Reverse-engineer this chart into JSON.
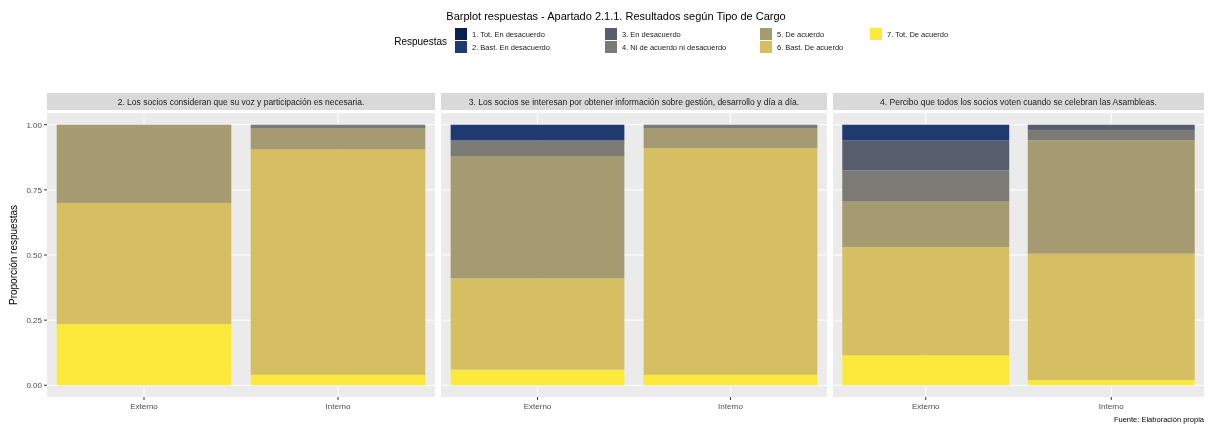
{
  "chart_data": [
    {
      "type": "bar",
      "stacked": true,
      "title": "2. Los socios consideran que su voz y participación es necesaria.",
      "ylabel": "Proporción respuestas",
      "legend_title": "Respuestas",
      "legend": "top",
      "grid": true,
      "categories": [
        "Externo",
        "Interno"
      ],
      "ylim": [
        -0.045,
        1.045
      ],
      "yticks": [
        {
          "value": 0,
          "label": "0.00"
        },
        {
          "value": 0.25,
          "label": "0.25"
        },
        {
          "value": 0.5,
          "label": "0.50"
        },
        {
          "value": 0.75,
          "label": "0.75"
        },
        {
          "value": 1,
          "label": "1.00"
        }
      ],
      "annotations": [
        "Barplot respuestas - Apartado 2.1.1. Resultados según Tipo de Cargo"
      ],
      "series": [
        {
          "name": "7. Tot. De acuerdo",
          "color": "#fde83c",
          "values": [
            0.235,
            0.04
          ]
        },
        {
          "name": "6. Bast. De acuerdo",
          "color": "#d5bf62",
          "values": [
            0.465,
            0.865
          ]
        },
        {
          "name": "5. De acuerdo",
          "color": "#a69b70",
          "values": [
            0.3,
            0.08
          ]
        },
        {
          "name": "4. Ni de acuerdo ni desacuerdo",
          "color": "#7b7a75",
          "values": [
            0,
            0.015
          ]
        },
        {
          "name": "3. En desacuerdo",
          "color": "#575d6d",
          "values": [
            0,
            0
          ]
        },
        {
          "name": "2. Bast. En desacuerdo",
          "color": "#1f3a6e",
          "values": [
            0,
            0
          ]
        },
        {
          "name": "1. Tot. En desacuerdo",
          "color": "#0d1f4f",
          "values": [
            0,
            0
          ]
        }
      ]
    },
    {
      "type": "bar",
      "stacked": true,
      "title": "3. Los socios se interesan por obtener información sobre gestión, desarrollo y día a día.",
      "grid": true,
      "tick_labels": "x",
      "categories": [
        "Externo",
        "Interno"
      ],
      "ylim": [
        -0.045,
        1.045
      ],
      "yticks": [
        {
          "value": 0,
          "label": null
        },
        {
          "value": 0.25,
          "label": null
        },
        {
          "value": 0.5,
          "label": null
        },
        {
          "value": 0.75,
          "label": null
        },
        {
          "value": 1,
          "label": null
        }
      ],
      "series": [
        {
          "color": "#fde83c",
          "values": [
            0.06,
            0.04
          ]
        },
        {
          "color": "#d5bf62",
          "values": [
            0.35,
            0.87
          ]
        },
        {
          "color": "#a69b70",
          "values": [
            0.47,
            0.075
          ]
        },
        {
          "color": "#7b7a75",
          "values": [
            0.06,
            0.015
          ]
        },
        {
          "color": "#575d6d",
          "values": [
            0,
            0
          ]
        },
        {
          "color": "#1f3a6e",
          "values": [
            0.06,
            0
          ]
        },
        {
          "color": "#0d1f4f",
          "values": [
            0,
            0
          ]
        }
      ]
    },
    {
      "type": "bar",
      "stacked": true,
      "title": "4. Percibo que todos los socios voten cuando se celebran las Asambleas.",
      "grid": true,
      "tick_labels": "x",
      "categories": [
        "Externo",
        "Interno"
      ],
      "ylim": [
        -0.045,
        1.045
      ],
      "yticks": [
        {
          "value": 0,
          "label": null
        },
        {
          "value": 0.25,
          "label": null
        },
        {
          "value": 0.5,
          "label": null
        },
        {
          "value": 0.75,
          "label": null
        },
        {
          "value": 1,
          "label": null
        }
      ],
      "annotations": [
        "Fuente: Elaboración propia"
      ],
      "series": [
        {
          "color": "#fde83c",
          "values": [
            0.115,
            0.02
          ]
        },
        {
          "color": "#d5bf62",
          "values": [
            0.415,
            0.485
          ]
        },
        {
          "color": "#a69b70",
          "values": [
            0.175,
            0.435
          ]
        },
        {
          "color": "#7b7a75",
          "values": [
            0.12,
            0.04
          ]
        },
        {
          "color": "#575d6d",
          "values": [
            0.115,
            0.02
          ]
        },
        {
          "color": "#1f3a6e",
          "values": [
            0.06,
            0
          ]
        },
        {
          "color": "#0d1f4f",
          "values": [
            0,
            0
          ]
        }
      ]
    }
  ]
}
